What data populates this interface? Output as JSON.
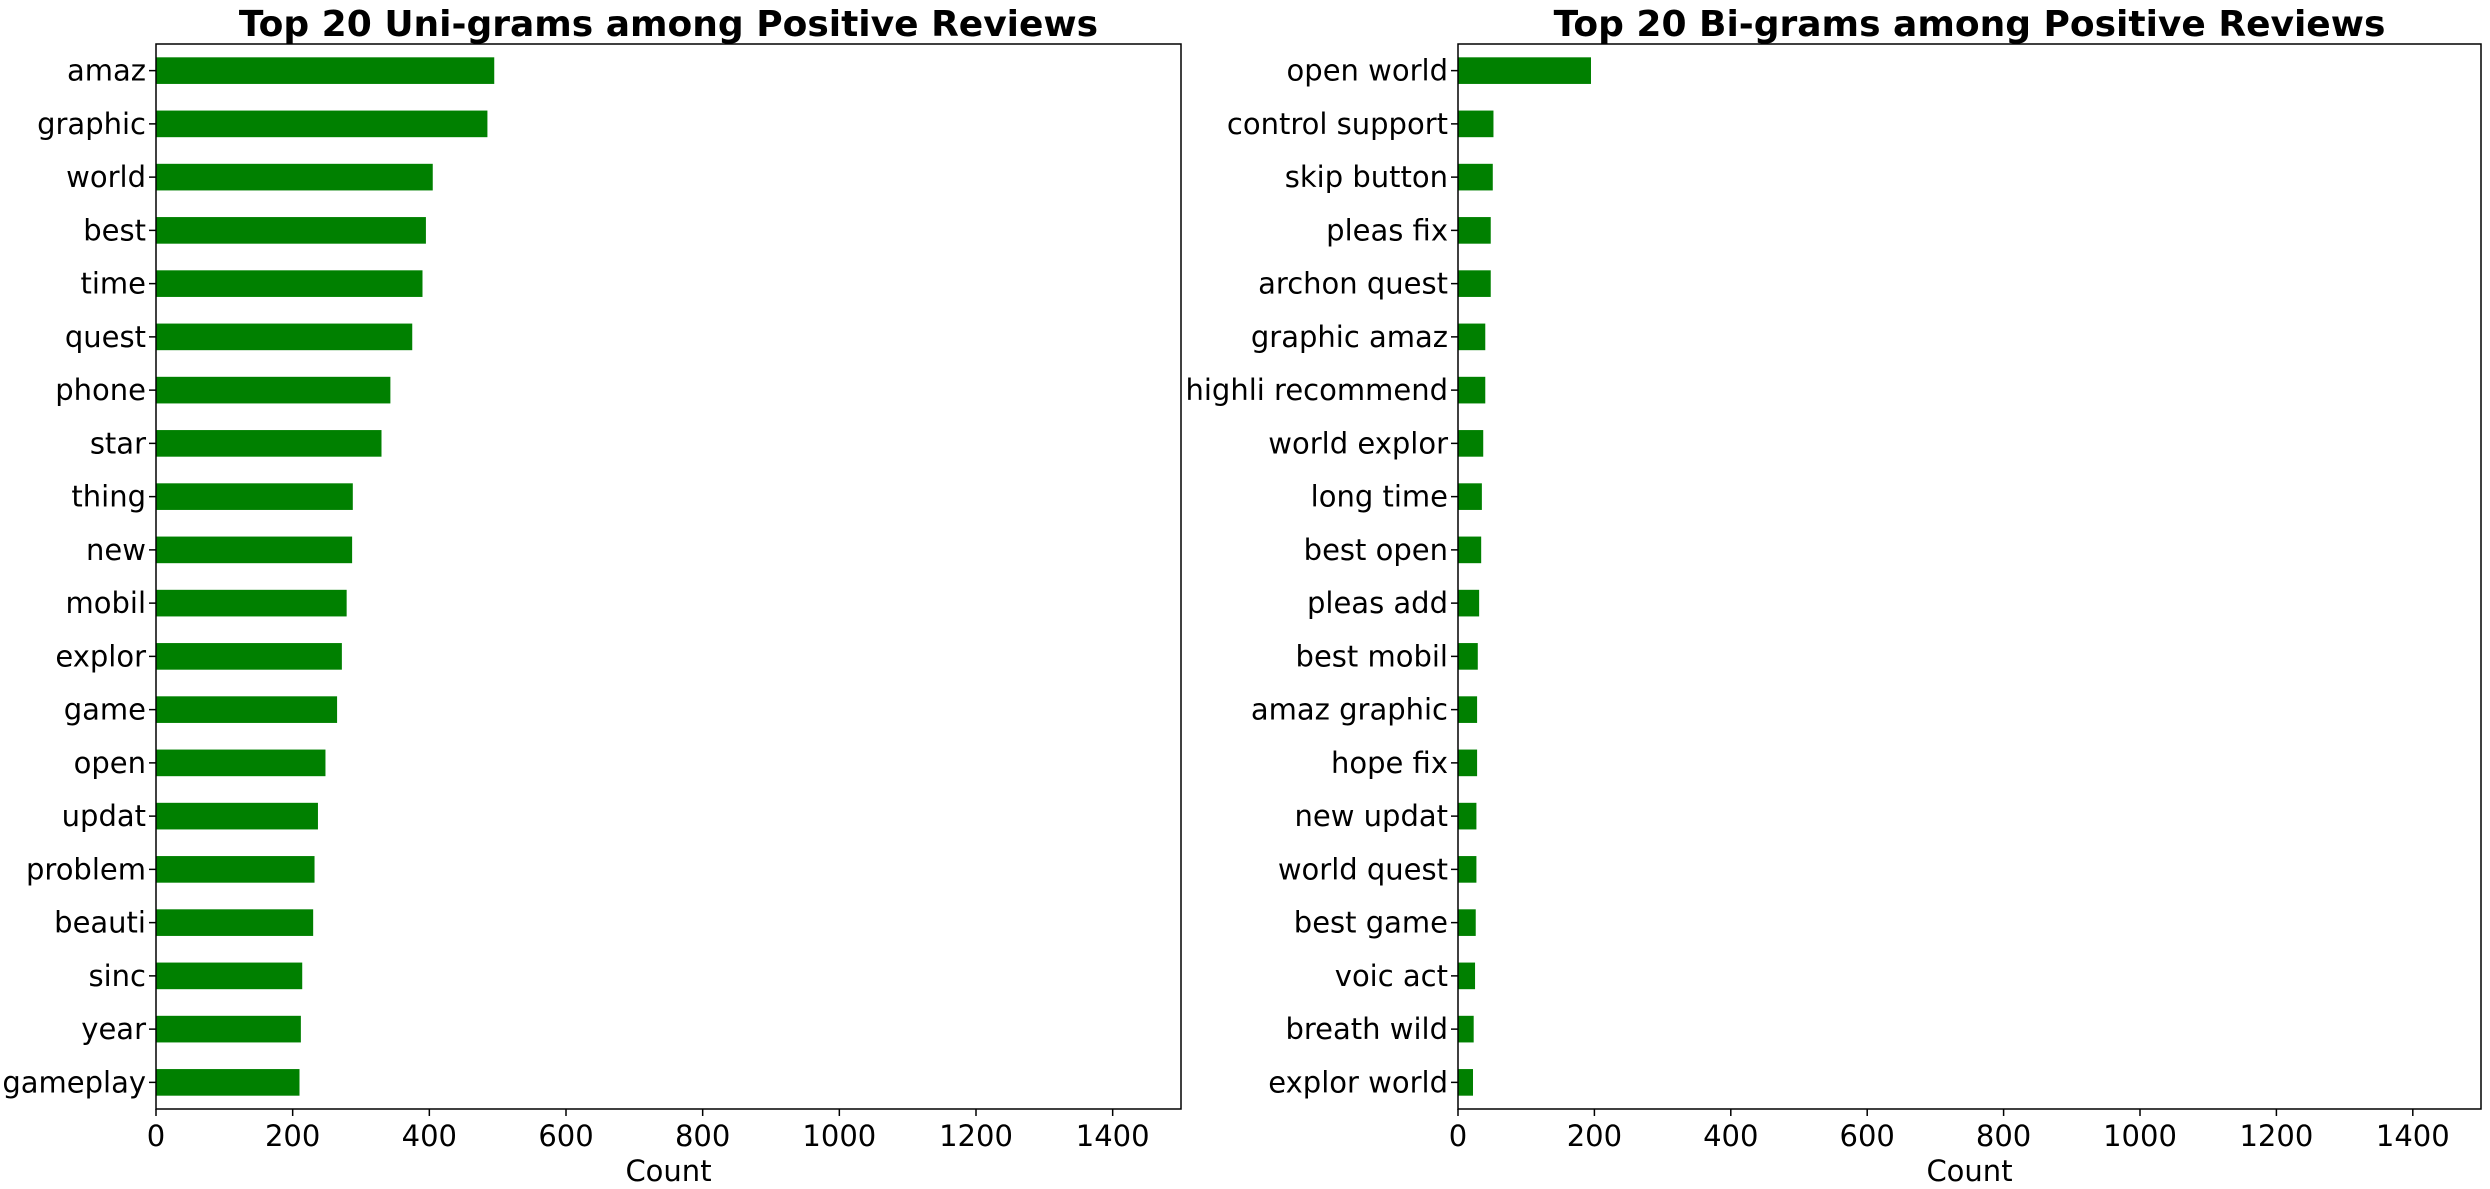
{
  "chart_data": [
    {
      "type": "bar",
      "orientation": "horizontal",
      "title": "Top 20 Uni-grams among Positive Reviews",
      "xlabel": "Count",
      "ylabel": "",
      "xlim": [
        0,
        1500
      ],
      "xticks": [
        "0",
        "200",
        "400",
        "600",
        "800",
        "1000",
        "1200",
        "1400"
      ],
      "grid": false,
      "color": "#008000",
      "categories": [
        "amaz",
        "graphic",
        "world",
        "best",
        "time",
        "quest",
        "phone",
        "star",
        "thing",
        "new",
        "mobil",
        "explor",
        "game",
        "open",
        "updat",
        "problem",
        "beauti",
        "sinc",
        "year",
        "gameplay"
      ],
      "values": [
        495,
        485,
        405,
        395,
        390,
        375,
        343,
        330,
        288,
        287,
        279,
        272,
        265,
        248,
        237,
        232,
        230,
        214,
        212,
        210
      ]
    },
    {
      "type": "bar",
      "orientation": "horizontal",
      "title": "Top 20 Bi-grams among Positive Reviews",
      "xlabel": "Count",
      "ylabel": "",
      "xlim": [
        0,
        1500
      ],
      "xticks": [
        "0",
        "200",
        "400",
        "600",
        "800",
        "1000",
        "1200",
        "1400"
      ],
      "grid": false,
      "color": "#008000",
      "categories": [
        "open world",
        "control support",
        "skip button",
        "pleas fix",
        "archon quest",
        "graphic amaz",
        "highli recommend",
        "world explor",
        "long time",
        "best open",
        "pleas add",
        "best mobil",
        "amaz graphic",
        "hope fix",
        "new updat",
        "world quest",
        "best game",
        "voic act",
        "breath wild",
        "explor world"
      ],
      "values": [
        195,
        52,
        51,
        48,
        48,
        40,
        40,
        37,
        35,
        34,
        31,
        29,
        28,
        28,
        27,
        27,
        26,
        25,
        23,
        22
      ]
    }
  ]
}
